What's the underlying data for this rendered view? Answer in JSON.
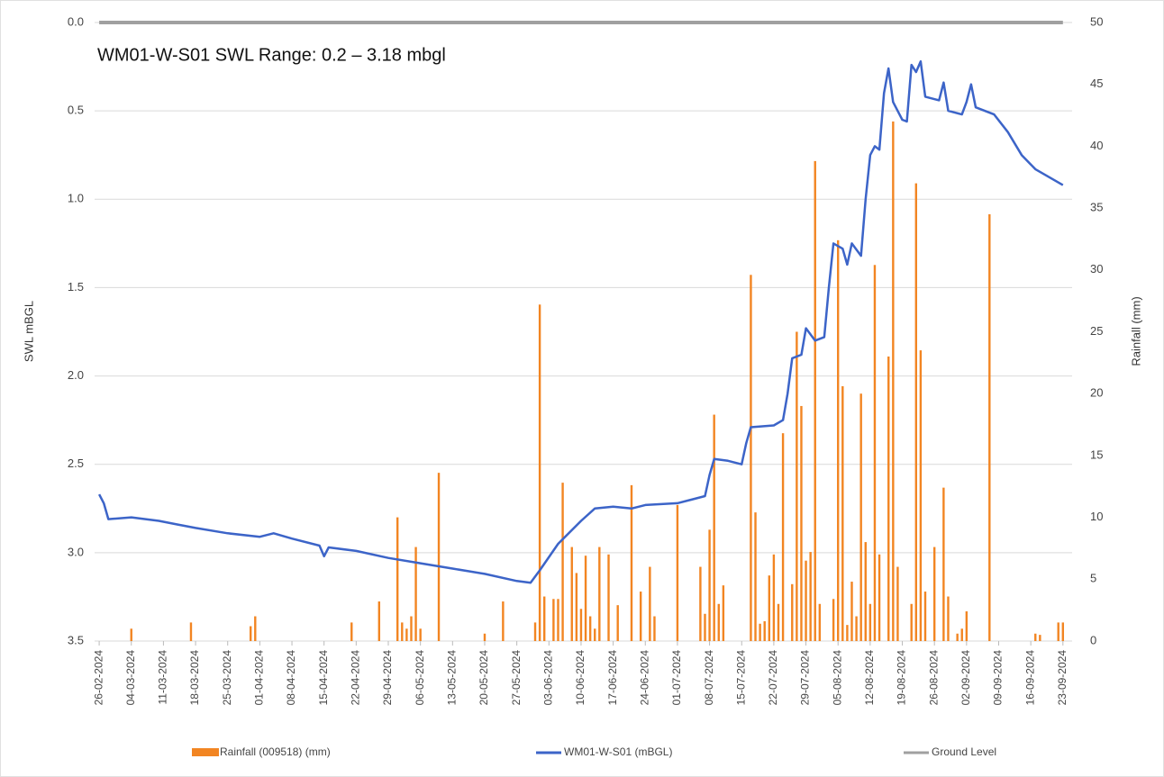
{
  "chart_data": {
    "type": "combo",
    "title": "WM01-W-S01 SWL Range: 0.2 – 3.18 mbgl",
    "y_label": "SWL mBGL",
    "y2_label": "Rainfall (mm)",
    "ylim": [
      3.5,
      0
    ],
    "yticks": [
      {
        "value": 0,
        "label": "0.0"
      },
      0.5,
      {
        "value": 1,
        "label": "1.0"
      },
      1.5,
      {
        "value": 2,
        "label": "2.0"
      },
      2.5,
      {
        "value": 3,
        "label": "3.0"
      },
      3.5
    ],
    "y2lim": [
      0,
      50
    ],
    "y2ticks": [
      0,
      5,
      10,
      15,
      20,
      25,
      30,
      35,
      40,
      45,
      50
    ],
    "xlim": [
      "25-02-2024",
      "25-09-2024"
    ],
    "xticks": [
      "26-02-2024",
      "04-03-2024",
      "11-03-2024",
      "18-03-2024",
      "25-03-2024",
      "01-04-2024",
      "08-04-2024",
      "15-04-2024",
      "22-04-2024",
      "29-04-2024",
      "06-05-2024",
      "13-05-2024",
      "20-05-2024",
      "27-05-2024",
      "03-06-2024",
      "10-06-2024",
      "17-06-2024",
      "24-06-2024",
      "01-07-2024",
      "08-07-2024",
      "15-07-2024",
      "22-07-2024",
      "29-07-2024",
      "05-08-2024",
      "12-08-2024",
      "19-08-2024",
      "26-08-2024",
      "02-09-2024",
      "09-09-2024",
      "16-09-2024",
      "23-09-2024"
    ],
    "grid": true,
    "legend": "bottom",
    "series": [
      {
        "name": "Rainfall (009518) (mm)",
        "type": "bar",
        "axis": "y2",
        "color": "#f28522",
        "x": [
          "04-03-2024",
          "17-03-2024",
          "30-03-2024",
          "31-03-2024",
          "21-04-2024",
          "27-04-2024",
          "01-05-2024",
          "02-05-2024",
          "03-05-2024",
          "04-05-2024",
          "05-05-2024",
          "06-05-2024",
          "10-05-2024",
          "20-05-2024",
          "24-05-2024",
          "31-05-2024",
          "01-06-2024",
          "02-06-2024",
          "04-06-2024",
          "05-06-2024",
          "06-06-2024",
          "08-06-2024",
          "09-06-2024",
          "10-06-2024",
          "11-06-2024",
          "12-06-2024",
          "13-06-2024",
          "14-06-2024",
          "16-06-2024",
          "18-06-2024",
          "21-06-2024",
          "23-06-2024",
          "25-06-2024",
          "26-06-2024",
          "01-07-2024",
          "06-07-2024",
          "07-07-2024",
          "08-07-2024",
          "09-07-2024",
          "10-07-2024",
          "11-07-2024",
          "17-07-2024",
          "18-07-2024",
          "19-07-2024",
          "20-07-2024",
          "21-07-2024",
          "22-07-2024",
          "23-07-2024",
          "24-07-2024",
          "26-07-2024",
          "27-07-2024",
          "28-07-2024",
          "29-07-2024",
          "30-07-2024",
          "31-07-2024",
          "01-08-2024",
          "04-08-2024",
          "05-08-2024",
          "06-08-2024",
          "07-08-2024",
          "08-08-2024",
          "09-08-2024",
          "10-08-2024",
          "11-08-2024",
          "12-08-2024",
          "13-08-2024",
          "14-08-2024",
          "16-08-2024",
          "17-08-2024",
          "18-08-2024",
          "21-08-2024",
          "22-08-2024",
          "23-08-2024",
          "24-08-2024",
          "26-08-2024",
          "28-08-2024",
          "29-08-2024",
          "31-08-2024",
          "01-09-2024",
          "02-09-2024",
          "07-09-2024",
          "17-09-2024",
          "18-09-2024",
          "22-09-2024",
          "23-09-2024"
        ],
        "values": [
          1.0,
          1.5,
          1.2,
          2.0,
          1.5,
          3.2,
          10,
          1.5,
          1.0,
          2.0,
          7.6,
          1.0,
          13.6,
          0.6,
          3.2,
          1.5,
          27.2,
          3.6,
          3.4,
          3.4,
          12.8,
          7.6,
          5.5,
          2.6,
          6.9,
          2.0,
          1.0,
          7.6,
          7.0,
          2.9,
          12.6,
          4.0,
          6.0,
          2.0,
          11.0,
          6.0,
          2.2,
          9.0,
          18.3,
          3.0,
          4.5,
          29.6,
          10.4,
          1.4,
          1.6,
          5.3,
          7.0,
          3.0,
          16.8,
          4.6,
          25.0,
          19.0,
          6.5,
          7.2,
          38.8,
          3.0,
          3.4,
          32.4,
          20.6,
          1.3,
          4.8,
          2.0,
          20.0,
          8.0,
          3.0,
          30.4,
          7.0,
          23.0,
          42.0,
          6.0,
          3.0,
          37.0,
          23.5,
          4.0,
          7.6,
          12.4,
          3.6,
          0.6,
          1.0,
          2.4,
          34.5,
          0.6,
          0.5,
          1.5,
          1.5
        ]
      },
      {
        "name": "WM01-W-S01 (mBGL)",
        "type": "line",
        "color": "#3c64c8",
        "x": [
          "26-02-2024",
          "27-02-2024",
          "28-02-2024",
          "04-03-2024",
          "10-03-2024",
          "14-03-2024",
          "18-03-2024",
          "25-03-2024",
          "01-04-2024",
          "04-04-2024",
          "08-04-2024",
          "14-04-2024",
          "15-04-2024",
          "16-04-2024",
          "22-04-2024",
          "29-04-2024",
          "06-05-2024",
          "13-05-2024",
          "20-05-2024",
          "27-05-2024",
          "30-05-2024",
          "01-06-2024",
          "05-06-2024",
          "10-06-2024",
          "13-06-2024",
          "17-06-2024",
          "21-06-2024",
          "24-06-2024",
          "01-07-2024",
          "04-07-2024",
          "07-07-2024",
          "08-07-2024",
          "09-07-2024",
          "12-07-2024",
          "15-07-2024",
          "16-07-2024",
          "17-07-2024",
          "22-07-2024",
          "24-07-2024",
          "25-07-2024",
          "26-07-2024",
          "28-07-2024",
          "29-07-2024",
          "31-07-2024",
          "02-08-2024",
          "03-08-2024",
          "04-08-2024",
          "06-08-2024",
          "07-08-2024",
          "08-08-2024",
          "10-08-2024",
          "11-08-2024",
          "12-08-2024",
          "13-08-2024",
          "14-08-2024",
          "15-08-2024",
          "16-08-2024",
          "17-08-2024",
          "19-08-2024",
          "20-08-2024",
          "21-08-2024",
          "22-08-2024",
          "23-08-2024",
          "24-08-2024",
          "27-08-2024",
          "28-08-2024",
          "29-08-2024",
          "01-09-2024",
          "02-09-2024",
          "03-09-2024",
          "04-09-2024",
          "08-09-2024",
          "11-09-2024",
          "14-09-2024",
          "17-09-2024",
          "21-09-2024",
          "23-09-2024"
        ],
        "values": [
          2.67,
          2.72,
          2.81,
          2.8,
          2.82,
          2.84,
          2.86,
          2.89,
          2.91,
          2.89,
          2.92,
          2.96,
          3.02,
          2.97,
          2.99,
          3.03,
          3.06,
          3.09,
          3.12,
          3.16,
          3.17,
          3.1,
          2.95,
          2.82,
          2.75,
          2.74,
          2.75,
          2.73,
          2.72,
          2.7,
          2.68,
          2.56,
          2.47,
          2.48,
          2.5,
          2.38,
          2.29,
          2.28,
          2.25,
          2.1,
          1.9,
          1.88,
          1.73,
          1.8,
          1.78,
          1.5,
          1.25,
          1.28,
          1.37,
          1.25,
          1.32,
          1.0,
          0.75,
          0.7,
          0.72,
          0.4,
          0.26,
          0.45,
          0.55,
          0.56,
          0.24,
          0.28,
          0.22,
          0.42,
          0.44,
          0.34,
          0.5,
          0.52,
          0.45,
          0.35,
          0.48,
          0.52,
          0.62,
          0.75,
          0.83,
          0.89,
          0.92
        ]
      },
      {
        "name": "Ground Level",
        "type": "line",
        "color": "#a0a0a0",
        "x": [
          "26-02-2024",
          "23-09-2024"
        ],
        "values": [
          0,
          0
        ]
      }
    ]
  }
}
